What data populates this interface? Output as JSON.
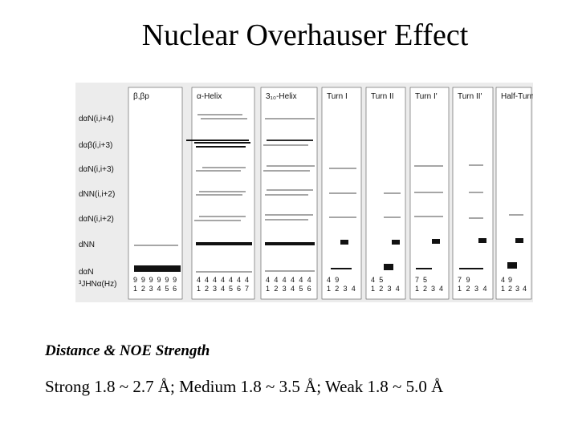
{
  "title": "Nuclear Overhauser Effect",
  "figure": {
    "row_labels": [
      "dαN(i,i+4)",
      "dαβ(i,i+3)",
      "dαN(i,i+3)",
      "dNN(i,i+2)",
      "dαN(i,i+2)",
      "dNN",
      "dαN",
      "³JHNα(Hz)"
    ],
    "columns": [
      {
        "label": "β,βp",
        "j_top": [
          "9",
          "9",
          "9",
          "9",
          "9",
          "9"
        ],
        "j_bottom": [
          "1",
          "2",
          "3",
          "4",
          "5",
          "6"
        ]
      },
      {
        "label": "α-Helix",
        "j_top": [
          "4",
          "4",
          "4",
          "4",
          "4",
          "4",
          "4"
        ],
        "j_bottom": [
          "1",
          "2",
          "3",
          "4",
          "5",
          "6",
          "7"
        ]
      },
      {
        "label": "3₁₀-Helix",
        "j_top": [
          "4",
          "4",
          "4",
          "4",
          "4",
          "4"
        ],
        "j_bottom": [
          "1",
          "2",
          "3",
          "4",
          "5",
          "6"
        ]
      },
      {
        "label": "Turn I",
        "j_top": [
          "4",
          "9"
        ],
        "j_bottom": [
          "1",
          "2",
          "3",
          "4"
        ]
      },
      {
        "label": "Turn II",
        "j_top": [
          "4",
          "5"
        ],
        "j_bottom": [
          "1",
          "2",
          "3",
          "4"
        ]
      },
      {
        "label": "Turn I'",
        "j_top": [
          "7",
          "5"
        ],
        "j_bottom": [
          "1",
          "2",
          "3",
          "4"
        ]
      },
      {
        "label": "Turn II'",
        "j_top": [
          "7",
          "9"
        ],
        "j_bottom": [
          "1",
          "2",
          "3",
          "4"
        ]
      },
      {
        "label": "Half-Turn",
        "j_top": [
          "4",
          "9"
        ],
        "j_bottom": [
          "1",
          "2",
          "3",
          "4"
        ]
      }
    ]
  },
  "subtitle": "Distance & NOE Strength",
  "ranges": "Strong 1.8 ~ 2.7 Å;  Medium 1.8 ~ 3.5 Å;  Weak 1.8 ~ 5.0 Å"
}
